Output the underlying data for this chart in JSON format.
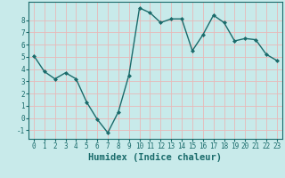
{
  "x": [
    0,
    1,
    2,
    3,
    4,
    5,
    6,
    7,
    8,
    9,
    10,
    11,
    12,
    13,
    14,
    15,
    16,
    17,
    18,
    19,
    20,
    21,
    22,
    23
  ],
  "y": [
    5.1,
    3.8,
    3.2,
    3.7,
    3.2,
    1.3,
    -0.1,
    -1.2,
    0.5,
    3.5,
    9.0,
    8.6,
    7.8,
    8.1,
    8.1,
    5.5,
    6.8,
    8.4,
    7.8,
    6.3,
    6.5,
    6.4,
    5.2,
    4.7
  ],
  "line_color": "#1a6b6b",
  "marker": "D",
  "marker_size": 2.0,
  "bg_color": "#c8eaea",
  "grid_color": "#e8b8b8",
  "xlabel": "Humidex (Indice chaleur)",
  "xlim": [
    -0.5,
    23.5
  ],
  "ylim": [
    -1.7,
    9.5
  ],
  "yticks": [
    -1,
    0,
    1,
    2,
    3,
    4,
    5,
    6,
    7,
    8
  ],
  "xticks": [
    0,
    1,
    2,
    3,
    4,
    5,
    6,
    7,
    8,
    9,
    10,
    11,
    12,
    13,
    14,
    15,
    16,
    17,
    18,
    19,
    20,
    21,
    22,
    23
  ],
  "tick_color": "#1a6b6b",
  "xlabel_fontsize": 7.5,
  "tick_fontsize": 5.5,
  "line_width": 1.0
}
